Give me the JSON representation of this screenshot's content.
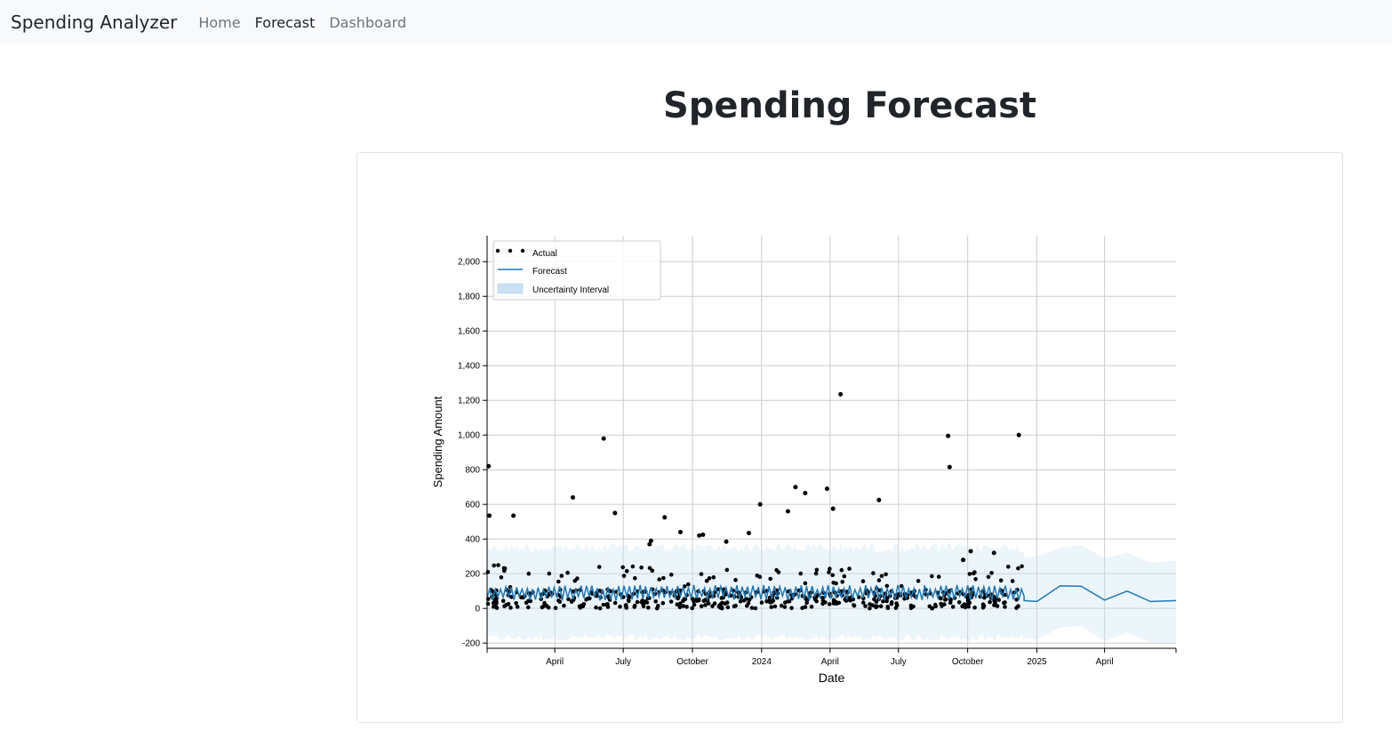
{
  "navbar": {
    "brand": "Spending Analyzer",
    "links": [
      {
        "label": "Home",
        "active": false
      },
      {
        "label": "Forecast",
        "active": true
      },
      {
        "label": "Dashboard",
        "active": false
      }
    ]
  },
  "page": {
    "title": "Spending Forecast"
  },
  "chart_data": {
    "type": "scatter",
    "title": "",
    "xlabel": "Date",
    "ylabel": "Spending Amount",
    "xlim": [
      "2023-01-01",
      "2025-07-05"
    ],
    "ylim": [
      -230,
      2150
    ],
    "yticks": [
      -200,
      0,
      200,
      400,
      600,
      800,
      1000,
      1200,
      1400,
      1600,
      1800,
      2000
    ],
    "ytick_labels": [
      "-200",
      "0",
      "200",
      "400",
      "600",
      "800",
      "1,000",
      "1,200",
      "1,400",
      "1,600",
      "1,800",
      "2,000"
    ],
    "xticks": [
      "2023-04-01",
      "2023-07-01",
      "2023-10-01",
      "2024-01-01",
      "2024-04-01",
      "2024-07-01",
      "2024-10-01",
      "2025-01-01",
      "2025-04-01"
    ],
    "xtick_labels": [
      "April",
      "July",
      "October",
      "2024",
      "April",
      "July",
      "October",
      "2025",
      "April"
    ],
    "grid": true,
    "legend": {
      "position": "top-left",
      "entries": [
        "Actual",
        "Forecast",
        "Uncertainty Interval"
      ]
    },
    "colors": {
      "actual": "#000000",
      "forecast": "#1f77b4",
      "interval": "#c9e1f2"
    },
    "actual_outliers": [
      {
        "x": "2023-01-03",
        "y": 820
      },
      {
        "x": "2023-01-04",
        "y": 535
      },
      {
        "x": "2023-02-05",
        "y": 535
      },
      {
        "x": "2023-04-25",
        "y": 640
      },
      {
        "x": "2023-06-05",
        "y": 980
      },
      {
        "x": "2023-06-20",
        "y": 550
      },
      {
        "x": "2023-08-05",
        "y": 370
      },
      {
        "x": "2023-08-07",
        "y": 390
      },
      {
        "x": "2023-08-25",
        "y": 525
      },
      {
        "x": "2023-09-15",
        "y": 440
      },
      {
        "x": "2023-10-10",
        "y": 420
      },
      {
        "x": "2023-10-15",
        "y": 425
      },
      {
        "x": "2023-11-15",
        "y": 385
      },
      {
        "x": "2023-12-15",
        "y": 435
      },
      {
        "x": "2023-12-30",
        "y": 600
      },
      {
        "x": "2024-02-05",
        "y": 560
      },
      {
        "x": "2024-02-15",
        "y": 700
      },
      {
        "x": "2024-02-28",
        "y": 665
      },
      {
        "x": "2024-03-28",
        "y": 690
      },
      {
        "x": "2024-04-05",
        "y": 575
      },
      {
        "x": "2024-04-15",
        "y": 1235
      },
      {
        "x": "2024-06-05",
        "y": 625
      },
      {
        "x": "2024-09-05",
        "y": 995
      },
      {
        "x": "2024-09-07",
        "y": 815
      },
      {
        "x": "2024-12-08",
        "y": 1000
      },
      {
        "x": "2024-11-05",
        "y": 320
      },
      {
        "x": "2024-10-05",
        "y": 330
      },
      {
        "x": "2024-09-25",
        "y": 280
      }
    ],
    "actual_range": {
      "start": "2023-01-01",
      "end": "2024-12-15",
      "typical_min": 0,
      "typical_max": 250
    },
    "forecast_history": {
      "start": "2023-01-01",
      "end": "2024-12-15",
      "mean_level": 90,
      "amplitude": 45
    },
    "forecast_future": [
      {
        "x": "2024-12-15",
        "y": 45
      },
      {
        "x": "2025-01-01",
        "y": 40
      },
      {
        "x": "2025-02-01",
        "y": 130
      },
      {
        "x": "2025-03-01",
        "y": 128
      },
      {
        "x": "2025-04-01",
        "y": 48
      },
      {
        "x": "2025-05-01",
        "y": 100
      },
      {
        "x": "2025-06-01",
        "y": 40
      },
      {
        "x": "2025-07-05",
        "y": 45
      }
    ],
    "interval_history": {
      "lower": -190,
      "upper": 380
    },
    "interval_future": [
      {
        "x": "2024-12-15",
        "lower": -170,
        "upper": 290
      },
      {
        "x": "2025-01-01",
        "lower": -180,
        "upper": 300
      },
      {
        "x": "2025-02-01",
        "lower": -110,
        "upper": 350
      },
      {
        "x": "2025-03-01",
        "lower": -100,
        "upper": 365
      },
      {
        "x": "2025-04-01",
        "lower": -190,
        "upper": 290
      },
      {
        "x": "2025-05-01",
        "lower": -140,
        "upper": 320
      },
      {
        "x": "2025-06-01",
        "lower": -195,
        "upper": 265
      },
      {
        "x": "2025-07-05",
        "lower": -195,
        "upper": 275
      }
    ]
  }
}
